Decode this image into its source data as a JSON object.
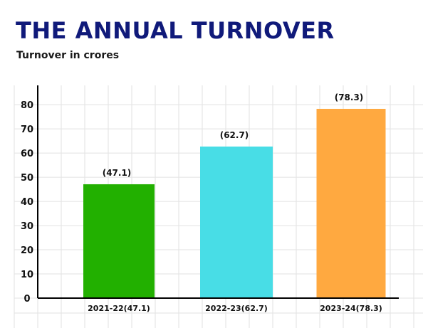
{
  "chart_data": {
    "type": "bar",
    "title": "THE ANNUAL TURNOVER",
    "subtitle": "Turnover in crores",
    "xlabel": "",
    "ylabel": "",
    "ylim": [
      0,
      88
    ],
    "yticks": [
      0,
      10,
      20,
      30,
      40,
      50,
      60,
      70,
      80
    ],
    "categories": [
      "2021-22(47.1)",
      "2022-23(62.7)",
      "2023-24(78.3)"
    ],
    "values": [
      47.1,
      62.7,
      78.3
    ],
    "data_labels": [
      "(47.1)",
      "(62.7)",
      "(78.3)"
    ],
    "colors": [
      "#22b000",
      "#48dde6",
      "#ffa940"
    ],
    "grid": true,
    "legend": "none"
  },
  "colors": {
    "title": "#101a7a",
    "grid": "#e2e2e2",
    "axis": "#000000"
  }
}
